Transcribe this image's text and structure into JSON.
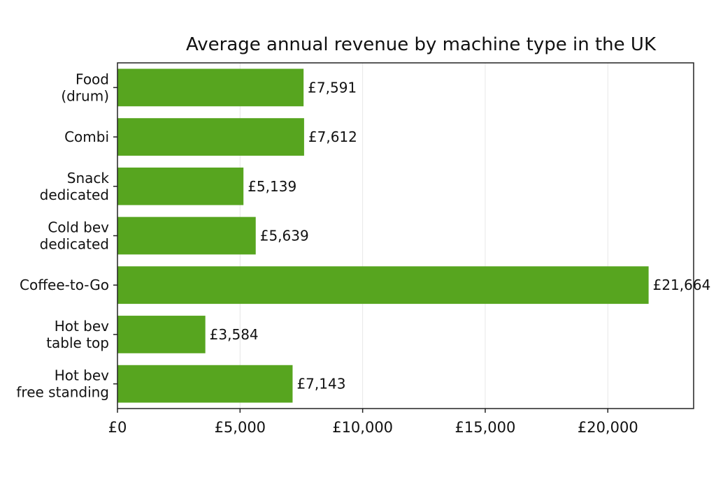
{
  "chart_data": {
    "type": "bar",
    "orientation": "horizontal",
    "title": "Average annual revenue by machine type in the UK",
    "xlabel": "",
    "ylabel": "",
    "categories": [
      [
        "Food",
        "(drum)"
      ],
      [
        "Combi"
      ],
      [
        "Snack",
        "dedicated"
      ],
      [
        "Cold bev",
        "dedicated"
      ],
      [
        "Coffee-to-Go"
      ],
      [
        "Hot bev",
        "table top"
      ],
      [
        "Hot bev",
        "free standing"
      ]
    ],
    "values": [
      7591,
      7612,
      5139,
      5639,
      21664,
      3584,
      7143
    ],
    "value_labels": [
      "£7,591",
      "£7,612",
      "£5,139",
      "£5,639",
      "£21,664",
      "£3,584",
      "£7,143"
    ],
    "xlim": [
      0,
      23500
    ],
    "xticks": [
      0,
      5000,
      10000,
      15000,
      20000
    ],
    "xtick_labels": [
      "£0",
      "£5,000",
      "£10,000",
      "£15,000",
      "£20,000"
    ],
    "grid": "vertical",
    "bar_color": "#57a51f",
    "legend": "none"
  }
}
